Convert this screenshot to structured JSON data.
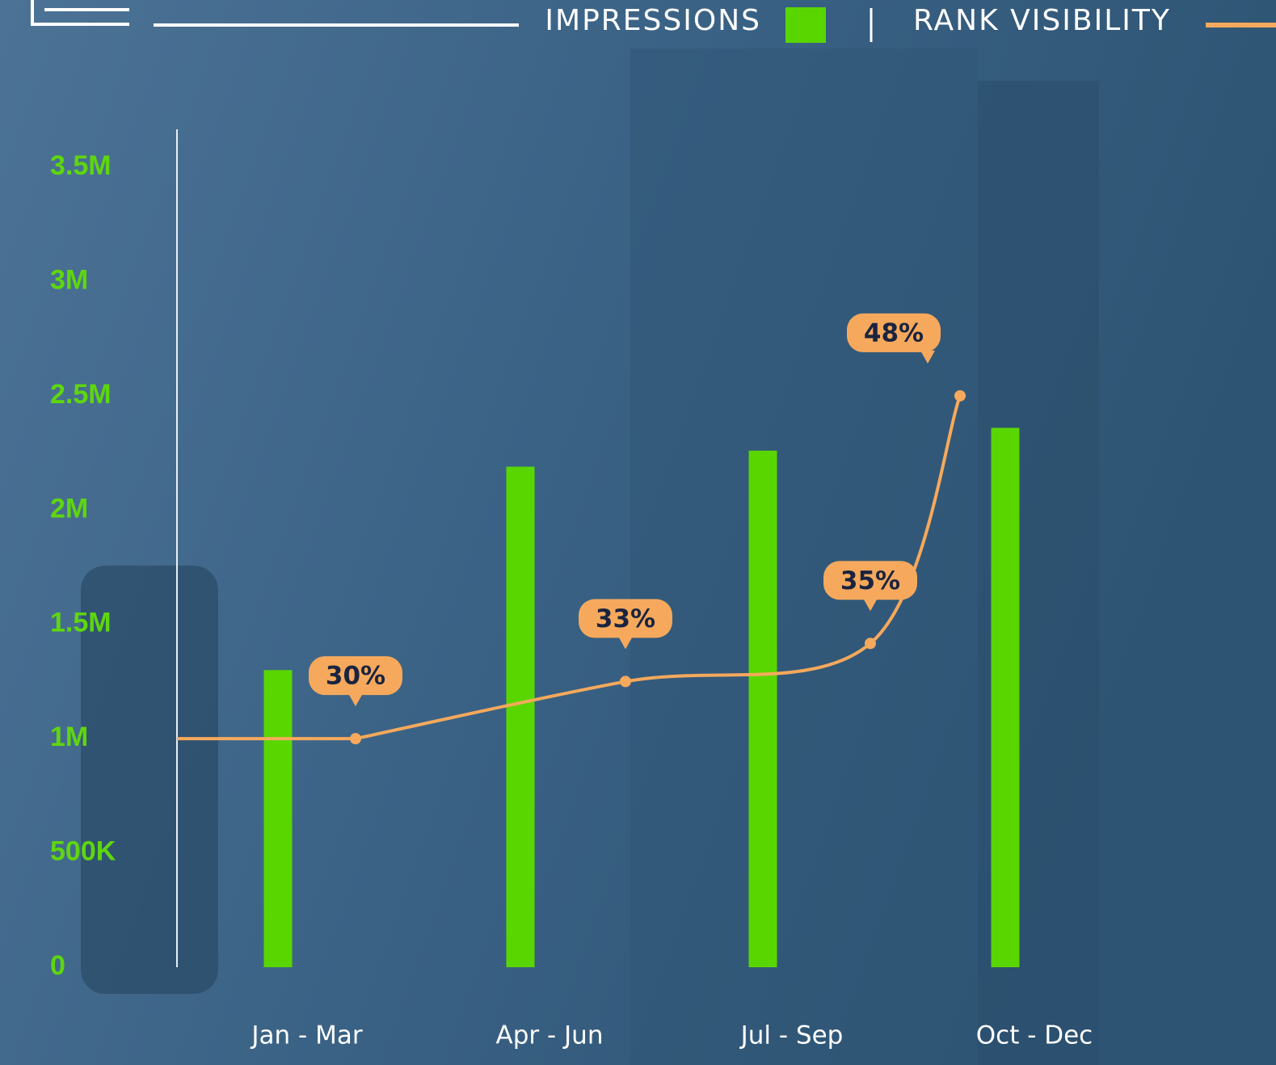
{
  "chart_data": {
    "type": "bar-line",
    "categories": [
      "Jan - Mar",
      "Apr - Jun",
      "Jul - Sep",
      "Oct - Dec"
    ],
    "series": [
      {
        "name": "IMPRESSIONS",
        "color": "#59d600",
        "values": [
          1300000,
          2190000,
          2260000,
          2360000
        ]
      },
      {
        "name": "RANK VISIBILITY",
        "color": "#f6a95c",
        "axis": "y2",
        "values": [
          30,
          33,
          35,
          48
        ],
        "value_labels": [
          "30%",
          "33%",
          "35%",
          "48%"
        ]
      }
    ],
    "ylim": [
      0,
      3500000
    ],
    "yticks": [
      0,
      {
        "value": 500000,
        "label": "500K"
      },
      {
        "value": 1000000,
        "label": "1M"
      },
      {
        "value": 1500000,
        "label": "1.5M"
      },
      {
        "value": 2000000,
        "label": "2M"
      },
      {
        "value": 2500000,
        "label": "2.5M"
      },
      {
        "value": 3000000,
        "label": "3M"
      },
      {
        "value": 3500000,
        "label": "3.5M"
      }
    ],
    "y2lim": [
      18,
      60
    ],
    "legend_position": "top"
  }
}
